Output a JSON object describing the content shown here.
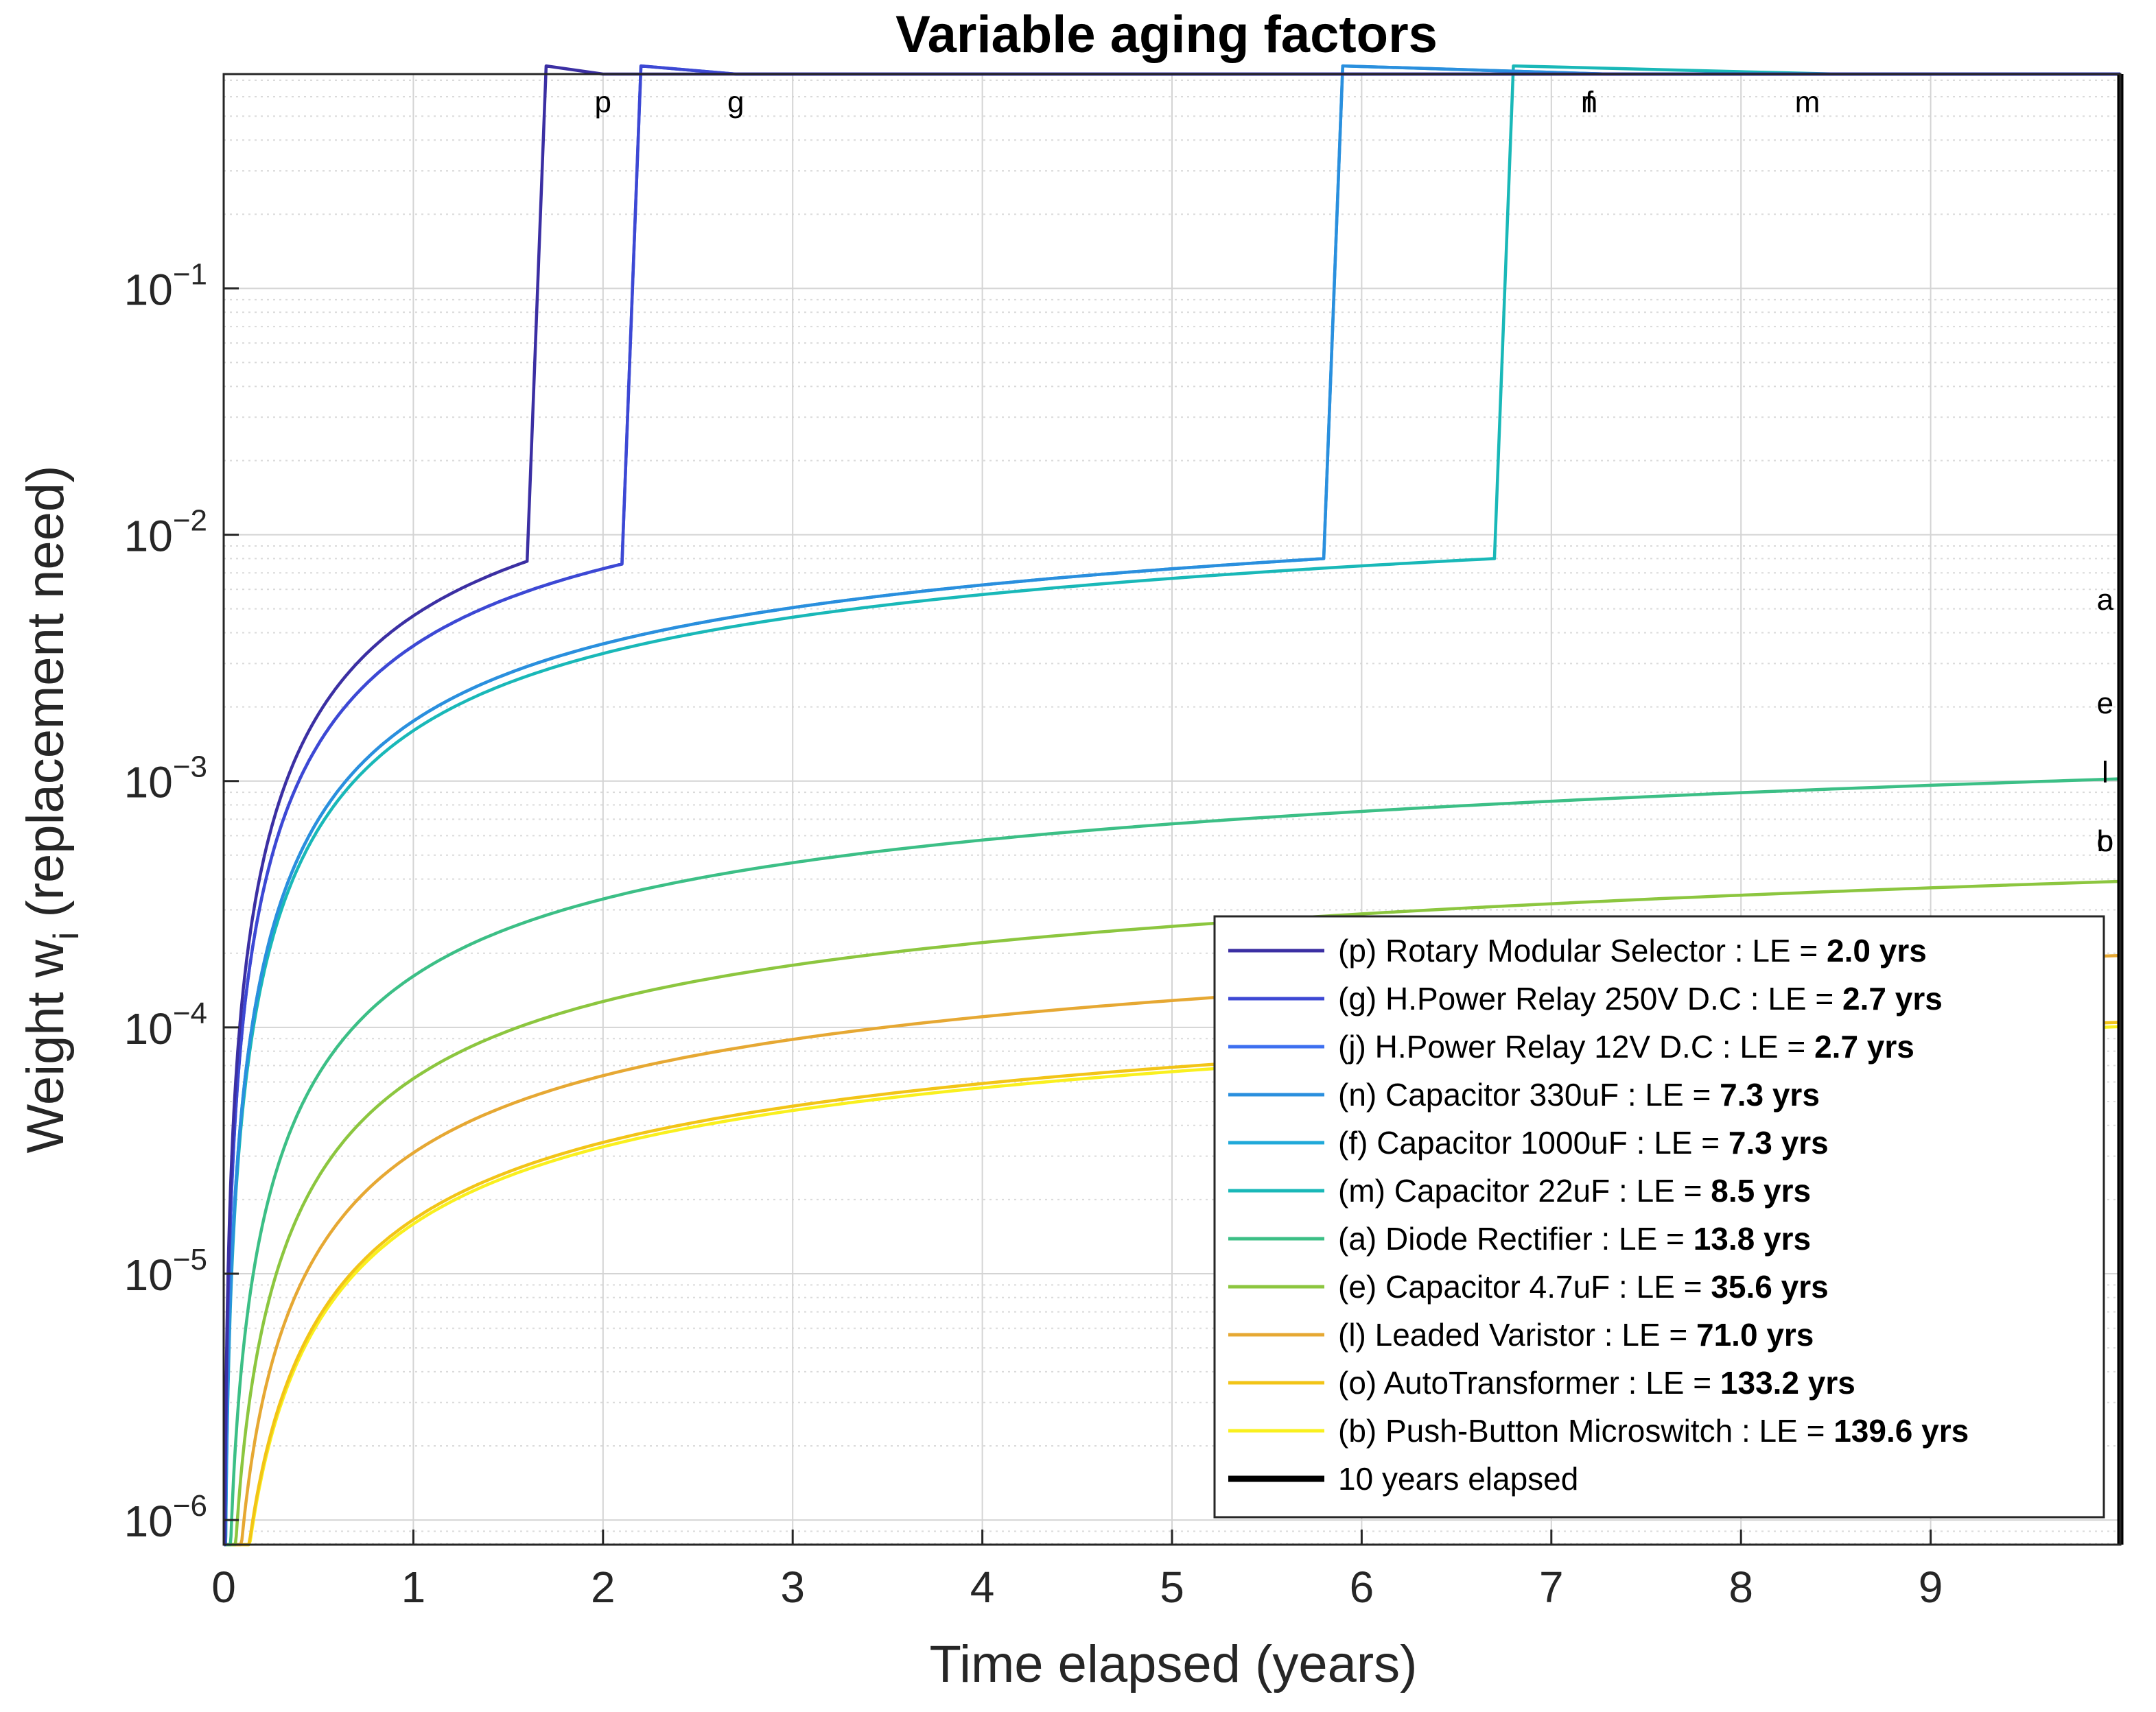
{
  "chart_data": {
    "type": "line",
    "title": "Variable aging factors",
    "xlabel": "Time elapsed (years)",
    "ylabel": {
      "main": "Weight w",
      "subscript": "i",
      "rest": " (replacement need)"
    },
    "xlim": [
      0,
      10
    ],
    "ylim_log10": [
      -6.1,
      -0.13
    ],
    "yscale": "log",
    "grid": true,
    "legend_location": "bottom-right",
    "x_ticks": [
      "0",
      "1",
      "2",
      "3",
      "4",
      "5",
      "6",
      "7",
      "8",
      "9"
    ],
    "y_ticks": [
      {
        "exp": -1,
        "base": "10",
        "power": "−1"
      },
      {
        "exp": -2,
        "base": "10",
        "power": "−2"
      },
      {
        "exp": -3,
        "base": "10",
        "power": "−3"
      },
      {
        "exp": -4,
        "base": "10",
        "power": "−4"
      },
      {
        "exp": -5,
        "base": "10",
        "power": "−5"
      },
      {
        "exp": -6,
        "base": "10",
        "power": "−6"
      }
    ],
    "series": [
      {
        "id": "p",
        "prefix": "(p) Rotary Modular Selector : LE = ",
        "value": "2.0 yrs",
        "color": "#3b2fa3",
        "le": 2.0,
        "k": 0.0019,
        "switch": 1.6,
        "last": 0.0078,
        "rise_end": 1.7,
        "rise_val": 0.8,
        "cap_at": 2.0
      },
      {
        "id": "g",
        "prefix": "(g) H.Power Relay 250V D.C : LE = ",
        "value": "2.7 yrs",
        "color": "#3d48d4",
        "le": 2.7,
        "k": 0.0012,
        "switch": 2.1,
        "last": 0.0076,
        "rise_end": 2.2,
        "rise_val": 0.8,
        "cap_at": 2.7
      },
      {
        "id": "j",
        "prefix": "(j) H.Power Relay 12V D.C  : LE = ",
        "value": "2.7 yrs",
        "color": "#3d6ff0",
        "le": 2.7,
        "k": 0.0012,
        "switch": 2.1,
        "last": 0.0076,
        "rise_end": 2.2,
        "rise_val": 0.8,
        "cap_at": 2.7
      },
      {
        "id": "n",
        "prefix": "(n) Capacitor 330uF : LE = ",
        "value": "7.3 yrs",
        "color": "#2a8fde",
        "le": 7.3,
        "k": 0.00022,
        "switch": 5.8,
        "last": 0.008,
        "rise_end": 5.9,
        "rise_val": 0.8,
        "cap_at": 7.3
      },
      {
        "id": "f",
        "prefix": "(f) Capacitor 1000uF : LE = ",
        "value": "7.3 yrs",
        "color": "#20a9d9",
        "le": 7.3,
        "k": 0.00022,
        "switch": 5.8,
        "last": 0.008,
        "rise_end": 5.9,
        "rise_val": 0.8,
        "cap_at": 7.3
      },
      {
        "id": "m",
        "prefix": "(m) Capacitor 22uF : LE = ",
        "value": "8.5 yrs",
        "color": "#19b8b8",
        "le": 8.5,
        "k": 0.00017,
        "switch": 6.7,
        "last": 0.008,
        "rise_end": 6.8,
        "rise_val": 0.8,
        "cap_at": 8.5
      },
      {
        "id": "a",
        "prefix": "(a) Diode Rectifier : LE = ",
        "value": "13.8 yrs",
        "color": "#3cbf86",
        "le": 13.8,
        "k": 7.3e-05
      },
      {
        "id": "e",
        "prefix": "(e) Capacitor 4.7uF : LE = ",
        "value": "35.6 yrs",
        "color": "#8cc63f",
        "le": 35.6,
        "k": 2.8e-05
      },
      {
        "id": "l",
        "prefix": "(l) Leaded Varistor : LE = ",
        "value": "71.0 yrs",
        "color": "#e6a833",
        "le": 71.0,
        "k": 1.4e-05
      },
      {
        "id": "o",
        "prefix": "(o) AutoTransformer : LE = ",
        "value": "133.2 yrs",
        "color": "#f2c417",
        "le": 133.2,
        "k": 7.5e-06
      },
      {
        "id": "b",
        "prefix": "(b) Push-Button Microswitch : LE = ",
        "value": "139.6 yrs",
        "color": "#f9f01e",
        "le": 139.6,
        "k": 7.2e-06
      }
    ],
    "marker": {
      "label": "10 years elapsed",
      "x": 10,
      "color": "#000000"
    },
    "curve_labels": [
      {
        "text": "p",
        "x": 2.0,
        "y_log10": -0.24
      },
      {
        "text": "g",
        "x": 2.7,
        "y_log10": -0.24
      },
      {
        "text": "n",
        "x": 7.2,
        "y_log10": -0.24
      },
      {
        "text": "f",
        "x": 7.2,
        "y_log10": -0.24
      },
      {
        "text": "m",
        "x": 8.35,
        "y_log10": -0.24
      },
      {
        "text": "a",
        "x": 9.92,
        "y_log10": -2.26
      },
      {
        "text": "e",
        "x": 9.92,
        "y_log10": -2.68
      },
      {
        "text": "l",
        "x": 9.92,
        "y_log10": -2.96
      },
      {
        "text": "o",
        "x": 9.92,
        "y_log10": -3.24
      },
      {
        "text": "b",
        "x": 9.92,
        "y_log10": -3.24
      }
    ]
  }
}
